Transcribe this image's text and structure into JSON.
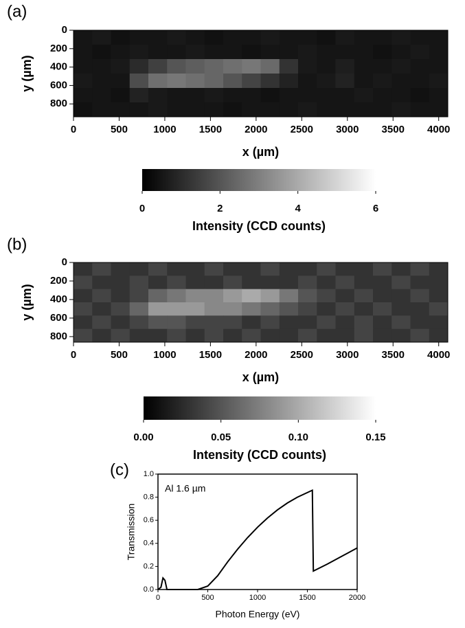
{
  "chart_data": [
    {
      "type": "heatmap",
      "panel_label": "(a)",
      "xlabel": "x (µm)",
      "ylabel": "y (µm)",
      "xlim": [
        0,
        4100
      ],
      "ylim": [
        0,
        940
      ],
      "xticks": [
        0,
        500,
        1000,
        1500,
        2000,
        2500,
        3000,
        3500,
        4000
      ],
      "yticks": [
        0,
        200,
        400,
        600,
        800
      ],
      "z": [
        [
          0.5,
          0.6,
          0.4,
          0.5,
          0.5,
          0.6,
          0.5,
          0.4,
          0.5,
          0.5,
          0.6,
          0.5,
          0.5,
          0.4,
          0.6,
          0.5,
          0.5,
          0.6,
          0.5,
          0.5
        ],
        [
          0.5,
          0.4,
          0.5,
          0.6,
          0.5,
          0.5,
          0.6,
          0.5,
          0.5,
          0.4,
          0.5,
          0.5,
          0.6,
          0.5,
          0.5,
          0.5,
          0.4,
          0.5,
          0.6,
          0.5
        ],
        [
          0.5,
          0.5,
          0.6,
          1.0,
          1.5,
          2.0,
          2.2,
          2.4,
          2.6,
          2.8,
          2.5,
          1.2,
          0.6,
          0.5,
          0.7,
          0.5,
          0.5,
          0.6,
          0.5,
          0.5
        ],
        [
          0.6,
          0.5,
          0.5,
          1.8,
          2.6,
          2.8,
          2.6,
          2.4,
          2.0,
          1.6,
          1.2,
          0.8,
          0.5,
          0.6,
          0.8,
          0.5,
          0.6,
          0.5,
          0.5,
          0.6
        ],
        [
          0.5,
          0.5,
          0.4,
          0.8,
          0.6,
          0.5,
          0.5,
          0.6,
          0.5,
          0.5,
          0.4,
          0.5,
          0.5,
          0.5,
          0.5,
          0.6,
          0.5,
          0.5,
          0.4,
          0.5
        ],
        [
          0.4,
          0.5,
          0.5,
          0.5,
          0.6,
          0.5,
          0.5,
          0.5,
          0.4,
          0.5,
          0.5,
          0.5,
          0.6,
          0.5,
          0.5,
          0.5,
          0.5,
          0.6,
          0.5,
          0.5
        ]
      ],
      "colorbar": {
        "lim": [
          0,
          6
        ],
        "ticks": [
          0,
          2,
          4,
          6
        ],
        "label": "Intensity (CCD counts)"
      }
    },
    {
      "type": "heatmap",
      "panel_label": "(b)",
      "xlabel": "x (µm)",
      "ylabel": "y (µm)",
      "xlim": [
        0,
        4100
      ],
      "ylim": [
        0,
        860
      ],
      "xticks": [
        0,
        500,
        1000,
        1500,
        2000,
        2500,
        3000,
        3500,
        4000
      ],
      "yticks": [
        0,
        200,
        400,
        600,
        800
      ],
      "z": [
        [
          0.03,
          0.04,
          0.03,
          0.03,
          0.04,
          0.03,
          0.03,
          0.04,
          0.03,
          0.03,
          0.04,
          0.03,
          0.03,
          0.04,
          0.03,
          0.03,
          0.04,
          0.03,
          0.04,
          0.03
        ],
        [
          0.04,
          0.03,
          0.03,
          0.04,
          0.03,
          0.04,
          0.03,
          0.03,
          0.04,
          0.03,
          0.03,
          0.03,
          0.04,
          0.03,
          0.04,
          0.03,
          0.03,
          0.04,
          0.03,
          0.03
        ],
        [
          0.03,
          0.04,
          0.03,
          0.04,
          0.06,
          0.07,
          0.08,
          0.08,
          0.09,
          0.1,
          0.09,
          0.07,
          0.05,
          0.04,
          0.03,
          0.04,
          0.03,
          0.03,
          0.04,
          0.03
        ],
        [
          0.04,
          0.03,
          0.04,
          0.06,
          0.09,
          0.09,
          0.09,
          0.08,
          0.08,
          0.07,
          0.06,
          0.05,
          0.04,
          0.03,
          0.04,
          0.03,
          0.04,
          0.03,
          0.03,
          0.04
        ],
        [
          0.03,
          0.04,
          0.03,
          0.04,
          0.05,
          0.05,
          0.04,
          0.04,
          0.04,
          0.03,
          0.04,
          0.03,
          0.03,
          0.04,
          0.03,
          0.04,
          0.03,
          0.04,
          0.03,
          0.03
        ],
        [
          0.04,
          0.03,
          0.04,
          0.03,
          0.03,
          0.04,
          0.03,
          0.04,
          0.03,
          0.04,
          0.03,
          0.03,
          0.04,
          0.03,
          0.03,
          0.04,
          0.03,
          0.03,
          0.04,
          0.03
        ]
      ],
      "colorbar": {
        "lim": [
          0,
          0.15
        ],
        "ticks": [
          {
            "value": 0,
            "label": "0.00"
          },
          {
            "value": 0.05,
            "label": "0.05"
          },
          {
            "value": 0.1,
            "label": "0.10"
          },
          {
            "value": 0.15,
            "label": "0.15"
          }
        ],
        "label": "Intensity (CCD counts)"
      }
    },
    {
      "type": "line",
      "panel_label": "(c)",
      "xlabel": "Photon Energy (eV)",
      "ylabel": "Transmission",
      "annotation": "Al 1.6 µm",
      "xlim": [
        0,
        2000
      ],
      "ylim": [
        0,
        1
      ],
      "xticks": [
        0,
        500,
        1000,
        1500,
        2000
      ],
      "yticks": [
        {
          "value": 0,
          "label": "0.0"
        },
        {
          "value": 0.2,
          "label": "0.2"
        },
        {
          "value": 0.4,
          "label": "0.4"
        },
        {
          "value": 0.6,
          "label": "0.6"
        },
        {
          "value": 0.8,
          "label": "0.8"
        },
        {
          "value": 1,
          "label": "1.0"
        }
      ],
      "color": "#000000",
      "x": [
        0,
        30,
        50,
        70,
        90,
        400,
        500,
        600,
        700,
        800,
        900,
        1000,
        1100,
        1200,
        1300,
        1400,
        1500,
        1550,
        1560,
        1700,
        1850,
        2000
      ],
      "values": [
        0,
        0.02,
        0.1,
        0.08,
        0,
        0,
        0.03,
        0.12,
        0.24,
        0.35,
        0.45,
        0.54,
        0.62,
        0.69,
        0.75,
        0.8,
        0.84,
        0.86,
        0.16,
        0.22,
        0.29,
        0.36
      ]
    }
  ]
}
